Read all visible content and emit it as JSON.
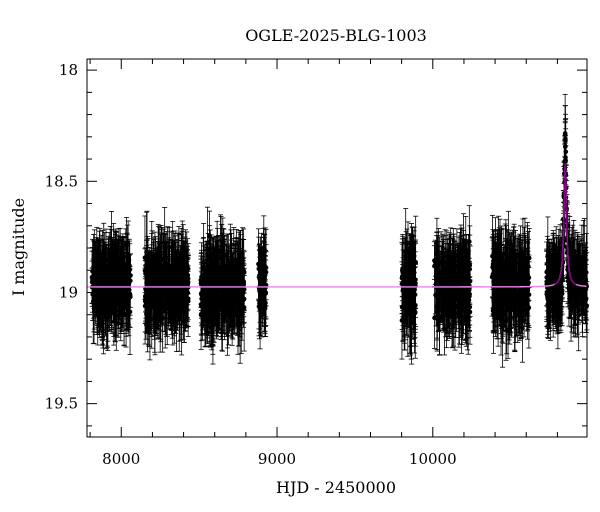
{
  "chart_data": {
    "type": "scatter",
    "title": "OGLE-2025-BLG-1003",
    "xlabel": "HJD - 2450000",
    "ylabel": "I magnitude",
    "xlim": [
      7780,
      10990
    ],
    "ylim": [
      19.65,
      17.95
    ],
    "y_inverted": true,
    "x_ticks": [
      8000,
      9000,
      10000
    ],
    "x_tick_labels": [
      "8000",
      "9000",
      "10000"
    ],
    "y_ticks": [
      18,
      18.5,
      19,
      19.5
    ],
    "y_tick_labels": [
      "18",
      "18.5",
      "19",
      "19.5"
    ],
    "grid": false,
    "legend": "none",
    "series": [
      {
        "kind": "points_with_errorbars",
        "color": "#000000",
        "seasons": [
          {
            "x_start": 7810,
            "x_end": 8060,
            "mean_mag": 18.97,
            "scatter": 0.12,
            "typical_error": 0.14
          },
          {
            "x_start": 8150,
            "x_end": 8430,
            "mean_mag": 18.97,
            "scatter": 0.12,
            "typical_error": 0.14
          },
          {
            "x_start": 8510,
            "x_end": 8790,
            "mean_mag": 18.98,
            "scatter": 0.12,
            "typical_error": 0.14
          },
          {
            "x_start": 8880,
            "x_end": 8930,
            "mean_mag": 18.95,
            "scatter": 0.1,
            "typical_error": 0.14
          },
          {
            "x_start": 9800,
            "x_end": 9890,
            "mean_mag": 18.98,
            "scatter": 0.13,
            "typical_error": 0.15
          },
          {
            "x_start": 10010,
            "x_end": 10240,
            "mean_mag": 18.97,
            "scatter": 0.12,
            "typical_error": 0.14
          },
          {
            "x_start": 10380,
            "x_end": 10620,
            "mean_mag": 18.97,
            "scatter": 0.12,
            "typical_error": 0.14
          },
          {
            "x_start": 10730,
            "x_end": 10990,
            "mean_mag": 18.96,
            "scatter": 0.11,
            "typical_error": 0.13
          }
        ],
        "event": {
          "t0": 10850,
          "peak_mag": 18.4,
          "width": 12
        }
      },
      {
        "kind": "model_curve",
        "color": "#ee82ee",
        "peak_color": "#800080",
        "baseline_mag": 18.975,
        "t0": 10850,
        "peak_mag": 18.42,
        "tE": 10
      }
    ]
  }
}
